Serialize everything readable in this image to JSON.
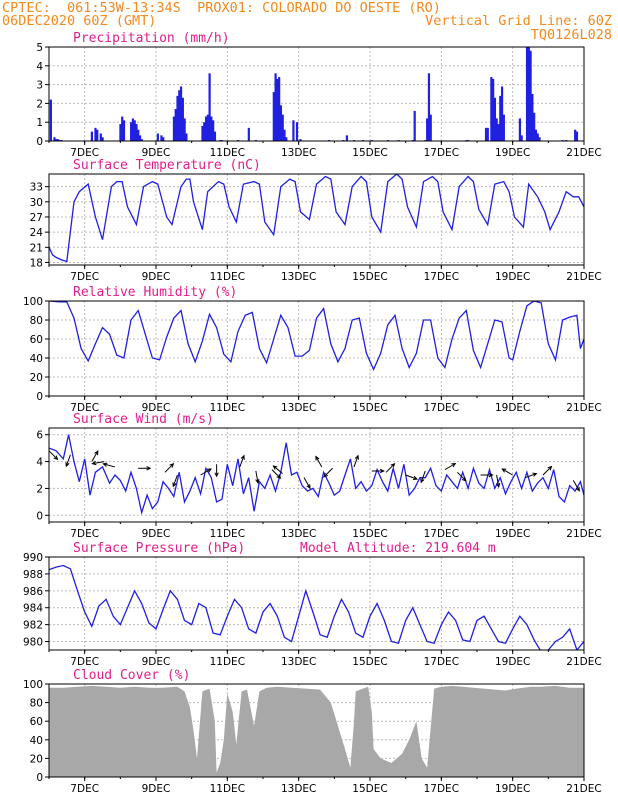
{
  "header": {
    "line1_left": "CPTEC:  061:53W-13:34S  PROX01: COLORADO DO OESTE (RO)",
    "line2_left": "06DEC2020 60Z (GMT)",
    "line2_right": "Vertical Grid Line: 60Z",
    "line3_right": "TQ0126L028"
  },
  "colors": {
    "header": "#f28a1e",
    "title": "#e0208a",
    "series": "#2020e0",
    "cloud": "#a8a8a8",
    "wind_arrow": "#000000",
    "grid": "#bcbcbc"
  },
  "x_axis": {
    "days": [
      {
        "day": 7,
        "label": "7DEC"
      },
      {
        "day": 9,
        "label": "9DEC"
      },
      {
        "day": 11,
        "label": "11DEC"
      },
      {
        "day": 13,
        "label": "13DEC"
      },
      {
        "day": 15,
        "label": "15DEC"
      },
      {
        "day": 17,
        "label": "17DEC"
      },
      {
        "day": 19,
        "label": "19DEC"
      },
      {
        "day": 21,
        "label": "21DEC"
      }
    ]
  },
  "chart_data": [
    {
      "id": "precip",
      "type": "bar",
      "title": "Precipitation (mm/h)",
      "ylim": [
        0,
        5
      ],
      "yticks": [
        0,
        1,
        2,
        3,
        4,
        5
      ],
      "x": [
        6.05,
        6.15,
        6.2,
        6.25,
        6.3,
        6.35,
        7.2,
        7.3,
        7.35,
        7.45,
        7.5,
        8.0,
        8.05,
        8.1,
        8.3,
        8.35,
        8.4,
        8.45,
        8.5,
        8.55,
        8.6,
        9.05,
        9.15,
        9.2,
        9.5,
        9.55,
        9.6,
        9.65,
        9.7,
        9.75,
        9.8,
        9.85,
        10.3,
        10.35,
        10.4,
        10.45,
        10.5,
        10.55,
        10.6,
        10.65,
        10.8,
        10.85,
        11.3,
        11.6,
        11.8,
        12.3,
        12.35,
        12.4,
        12.45,
        12.5,
        12.55,
        12.6,
        12.65,
        12.85,
        12.95,
        13.05,
        13.85,
        14.25,
        14.35,
        14.55,
        14.8,
        15.05,
        15.5,
        15.8,
        16.2,
        16.25,
        16.55,
        16.6,
        16.65,
        16.7,
        17.7,
        17.75,
        18.25,
        18.3,
        18.4,
        18.45,
        18.5,
        18.55,
        18.6,
        18.65,
        18.7,
        18.75,
        19.2,
        19.25,
        19.4,
        19.45,
        19.5,
        19.55,
        19.6,
        19.65,
        19.7,
        19.75,
        20.4,
        20.5,
        20.75,
        20.8
      ],
      "values": [
        2.2,
        0.2,
        0.1,
        0.1,
        0.05,
        0.05,
        0.5,
        0.7,
        0.6,
        0.4,
        0.2,
        0.9,
        1.3,
        1.1,
        1.0,
        1.2,
        1.1,
        0.9,
        0.6,
        0.3,
        0.1,
        0.4,
        0.3,
        0.2,
        1.3,
        1.7,
        2.4,
        2.7,
        2.9,
        2.3,
        1.2,
        0.4,
        0.8,
        1.0,
        1.3,
        1.4,
        3.6,
        1.3,
        1.1,
        0.5,
        0.05,
        0.05,
        0.05,
        0.7,
        0.05,
        2.6,
        3.6,
        3.3,
        3.4,
        1.9,
        1.4,
        0.6,
        0.2,
        1.1,
        1.0,
        0.1,
        0.05,
        0.05,
        0.3,
        0.05,
        0.05,
        0.05,
        0.05,
        0.05,
        0.05,
        1.6,
        0.05,
        1.2,
        3.6,
        1.4,
        0.05,
        0.05,
        0.7,
        0.7,
        3.4,
        3.3,
        2.3,
        1.2,
        0.9,
        2.4,
        2.9,
        1.4,
        1.2,
        0.3,
        5.0,
        5.0,
        4.8,
        2.5,
        1.5,
        0.6,
        0.4,
        0.2,
        0.05,
        0.05,
        0.6,
        0.5
      ]
    },
    {
      "id": "temp",
      "type": "line",
      "title": "Surface Temperature (nC)",
      "ylim": [
        17.5,
        35.5
      ],
      "yticks": [
        18,
        21,
        24,
        27,
        30,
        33
      ],
      "x": [
        6.0,
        6.1,
        6.2,
        6.35,
        6.5,
        6.7,
        6.85,
        7.1,
        7.3,
        7.5,
        7.75,
        7.9,
        8.05,
        8.2,
        8.45,
        8.65,
        8.9,
        9.05,
        9.3,
        9.45,
        9.7,
        9.85,
        9.95,
        10.05,
        10.3,
        10.45,
        10.75,
        10.9,
        11.05,
        11.25,
        11.45,
        11.75,
        11.9,
        12.05,
        12.3,
        12.5,
        12.75,
        12.9,
        13.05,
        13.3,
        13.5,
        13.75,
        13.9,
        14.05,
        14.3,
        14.5,
        14.75,
        14.9,
        15.05,
        15.3,
        15.5,
        15.75,
        15.9,
        16.05,
        16.3,
        16.5,
        16.75,
        16.9,
        17.05,
        17.3,
        17.5,
        17.75,
        17.9,
        18.05,
        18.3,
        18.5,
        18.75,
        18.9,
        19.05,
        19.3,
        19.45,
        19.7,
        19.9,
        20.05,
        20.3,
        20.5,
        20.7,
        20.85,
        21.0
      ],
      "values": [
        21.0,
        19.5,
        19.0,
        18.5,
        18.2,
        30.0,
        32.0,
        33.5,
        27.0,
        22.5,
        33.0,
        34.0,
        34.0,
        29.0,
        25.5,
        33.0,
        34.0,
        33.5,
        27.0,
        25.5,
        33.0,
        34.5,
        34.5,
        30.0,
        24.5,
        32.0,
        34.0,
        33.5,
        29.0,
        26.0,
        33.5,
        34.0,
        33.5,
        26.0,
        23.5,
        33.0,
        34.5,
        34.0,
        28.0,
        26.5,
        33.5,
        35.0,
        34.5,
        28.0,
        25.5,
        33.0,
        35.0,
        34.0,
        27.0,
        24.0,
        34.0,
        35.5,
        34.5,
        29.0,
        25.0,
        34.0,
        35.0,
        34.0,
        28.0,
        24.5,
        33.0,
        35.0,
        34.0,
        28.5,
        25.5,
        33.5,
        34.0,
        32.0,
        27.0,
        25.0,
        33.5,
        31.0,
        28.0,
        24.5,
        28.0,
        32.0,
        31.0,
        31.0,
        29.0
      ]
    },
    {
      "id": "rh",
      "type": "line",
      "title": "Relative Humidity (%)",
      "ylim": [
        0,
        100
      ],
      "yticks": [
        0,
        20,
        40,
        60,
        80,
        100
      ],
      "x": [
        6.0,
        6.3,
        6.5,
        6.7,
        6.9,
        7.1,
        7.3,
        7.5,
        7.7,
        7.9,
        8.1,
        8.3,
        8.5,
        8.7,
        8.9,
        9.1,
        9.3,
        9.5,
        9.7,
        9.9,
        10.1,
        10.3,
        10.5,
        10.7,
        10.9,
        11.1,
        11.3,
        11.5,
        11.7,
        11.9,
        12.1,
        12.3,
        12.5,
        12.7,
        12.9,
        13.1,
        13.3,
        13.5,
        13.7,
        13.9,
        14.1,
        14.3,
        14.5,
        14.7,
        14.9,
        15.1,
        15.3,
        15.5,
        15.7,
        15.9,
        16.1,
        16.3,
        16.5,
        16.7,
        16.9,
        17.1,
        17.3,
        17.5,
        17.7,
        17.9,
        18.1,
        18.3,
        18.5,
        18.7,
        18.9,
        19.0,
        19.2,
        19.4,
        19.6,
        19.8,
        20.0,
        20.2,
        20.4,
        20.6,
        20.8,
        20.9,
        21.0
      ],
      "values": [
        100,
        99,
        99,
        82,
        50,
        37,
        55,
        72,
        65,
        43,
        40,
        80,
        90,
        65,
        40,
        38,
        62,
        82,
        90,
        55,
        36,
        58,
        86,
        72,
        44,
        36,
        68,
        85,
        88,
        50,
        35,
        60,
        85,
        72,
        42,
        42,
        48,
        82,
        92,
        55,
        36,
        50,
        80,
        82,
        45,
        28,
        45,
        75,
        85,
        50,
        30,
        45,
        80,
        80,
        40,
        30,
        60,
        82,
        90,
        48,
        30,
        55,
        80,
        78,
        40,
        38,
        68,
        95,
        100,
        98,
        55,
        38,
        80,
        83,
        85,
        50,
        60
      ]
    },
    {
      "id": "wind",
      "type": "line",
      "title": "Surface Wind (m/s)",
      "ylim": [
        -0.5,
        6.5
      ],
      "yticks": [
        0,
        2,
        4,
        6
      ],
      "x": [
        6.0,
        6.2,
        6.4,
        6.55,
        6.7,
        6.85,
        7.0,
        7.15,
        7.3,
        7.5,
        7.7,
        7.85,
        8.0,
        8.15,
        8.3,
        8.45,
        8.6,
        8.75,
        8.9,
        9.05,
        9.2,
        9.35,
        9.5,
        9.65,
        9.8,
        9.95,
        10.1,
        10.25,
        10.4,
        10.55,
        10.7,
        10.85,
        11.0,
        11.15,
        11.3,
        11.45,
        11.6,
        11.75,
        11.9,
        12.05,
        12.2,
        12.35,
        12.5,
        12.65,
        12.8,
        12.95,
        13.1,
        13.25,
        13.4,
        13.55,
        13.7,
        13.85,
        14.0,
        14.15,
        14.3,
        14.45,
        14.6,
        14.75,
        14.9,
        15.05,
        15.2,
        15.35,
        15.5,
        15.65,
        15.8,
        15.95,
        16.1,
        16.25,
        16.4,
        16.55,
        16.7,
        16.85,
        17.0,
        17.15,
        17.3,
        17.45,
        17.6,
        17.75,
        17.9,
        18.05,
        18.2,
        18.35,
        18.5,
        18.65,
        18.8,
        18.95,
        19.1,
        19.25,
        19.4,
        19.55,
        19.7,
        19.85,
        20.0,
        20.15,
        20.3,
        20.45,
        20.6,
        20.75,
        20.9,
        21.0
      ],
      "values": [
        5.0,
        4.8,
        4.2,
        6.0,
        4.0,
        2.5,
        4.2,
        1.5,
        3.2,
        3.6,
        2.4,
        3.0,
        2.6,
        1.8,
        3.2,
        2.0,
        0.2,
        1.5,
        0.5,
        1.0,
        2.5,
        2.0,
        1.4,
        3.2,
        1.0,
        1.8,
        2.8,
        1.6,
        3.5,
        2.8,
        1.0,
        1.2,
        3.8,
        2.2,
        4.2,
        1.6,
        2.8,
        0.3,
        2.5,
        2.0,
        3.0,
        1.8,
        3.2,
        5.4,
        3.0,
        3.2,
        2.2,
        1.8,
        2.0,
        1.4,
        3.2,
        2.4,
        1.5,
        1.8,
        3.0,
        4.2,
        2.0,
        2.5,
        1.8,
        2.2,
        3.4,
        2.5,
        1.8,
        3.5,
        2.0,
        3.8,
        1.5,
        2.0,
        2.8,
        2.8,
        3.5,
        2.2,
        1.8,
        3.0,
        2.5,
        2.0,
        3.2,
        2.0,
        3.5,
        2.4,
        2.0,
        3.4,
        2.0,
        2.8,
        1.6,
        2.5,
        3.2,
        2.0,
        3.2,
        1.8,
        2.4,
        2.8,
        2.0,
        3.4,
        1.4,
        1.0,
        2.2,
        1.8,
        2.5,
        1.5
      ]
    },
    {
      "id": "pres",
      "type": "line",
      "title": "Surface Pressure (hPa)",
      "annotation": "Model Altitude: 219.604 m",
      "ylim": [
        979,
        990
      ],
      "yticks": [
        980,
        982,
        984,
        986,
        988,
        990
      ],
      "x": [
        6.0,
        6.2,
        6.4,
        6.6,
        6.8,
        7.0,
        7.2,
        7.4,
        7.6,
        7.8,
        8.0,
        8.2,
        8.4,
        8.6,
        8.8,
        9.0,
        9.2,
        9.4,
        9.6,
        9.8,
        10.0,
        10.2,
        10.4,
        10.6,
        10.8,
        11.0,
        11.2,
        11.4,
        11.6,
        11.8,
        12.0,
        12.2,
        12.4,
        12.6,
        12.8,
        13.0,
        13.2,
        13.4,
        13.6,
        13.8,
        14.0,
        14.2,
        14.4,
        14.6,
        14.8,
        15.0,
        15.2,
        15.4,
        15.6,
        15.8,
        16.0,
        16.2,
        16.4,
        16.6,
        16.8,
        17.0,
        17.2,
        17.4,
        17.6,
        17.8,
        18.0,
        18.2,
        18.4,
        18.6,
        18.8,
        19.0,
        19.2,
        19.4,
        19.6,
        19.8,
        20.0,
        20.2,
        20.4,
        20.6,
        20.8,
        21.0
      ],
      "values": [
        988.5,
        988.8,
        989.0,
        988.6,
        986.0,
        983.5,
        981.8,
        984.2,
        985.0,
        983.0,
        982.0,
        984.0,
        986.0,
        984.5,
        982.2,
        981.5,
        983.8,
        986.0,
        985.0,
        982.5,
        982.0,
        984.5,
        984.0,
        981.0,
        980.8,
        983.0,
        985.0,
        984.0,
        981.5,
        981.0,
        983.5,
        984.5,
        983.0,
        980.5,
        980.0,
        983.0,
        986.0,
        983.5,
        980.8,
        980.5,
        983.0,
        985.0,
        983.5,
        981.0,
        980.5,
        983.0,
        984.5,
        982.5,
        980.0,
        979.8,
        982.5,
        984.0,
        982.0,
        980.0,
        979.8,
        982.0,
        983.5,
        982.5,
        980.2,
        980.0,
        982.5,
        983.0,
        981.5,
        980.0,
        979.8,
        981.5,
        983.0,
        982.0,
        980.2,
        978.8,
        979.0,
        980.0,
        980.5,
        981.5,
        979.0,
        980.0
      ]
    },
    {
      "id": "cloud",
      "type": "area",
      "title": "Cloud Cover (%)",
      "ylim": [
        0,
        100
      ],
      "yticks": [
        0,
        20,
        40,
        60,
        80,
        100
      ],
      "x": [
        6.0,
        6.4,
        6.8,
        7.2,
        7.6,
        8.0,
        8.4,
        8.8,
        9.2,
        9.6,
        9.8,
        9.95,
        10.05,
        10.15,
        10.3,
        10.5,
        10.65,
        10.7,
        10.8,
        10.9,
        11.0,
        11.15,
        11.25,
        11.4,
        11.55,
        11.75,
        11.9,
        12.1,
        12.4,
        12.8,
        13.2,
        13.6,
        13.9,
        14.1,
        14.3,
        14.45,
        14.55,
        14.6,
        14.8,
        14.95,
        15.05,
        15.1,
        15.3,
        15.6,
        15.9,
        16.1,
        16.3,
        16.45,
        16.6,
        16.8,
        17.0,
        17.3,
        17.6,
        17.9,
        18.2,
        18.5,
        18.8,
        19.1,
        19.3,
        19.5,
        19.8,
        20.2,
        20.6,
        21.0
      ],
      "values": [
        96,
        96,
        97,
        98,
        97,
        96,
        97,
        96,
        96,
        97,
        92,
        75,
        50,
        20,
        92,
        95,
        60,
        5,
        15,
        40,
        90,
        70,
        35,
        92,
        94,
        55,
        92,
        96,
        97,
        96,
        95,
        94,
        80,
        55,
        30,
        10,
        60,
        92,
        95,
        97,
        70,
        30,
        20,
        15,
        25,
        40,
        60,
        20,
        10,
        95,
        97,
        98,
        97,
        96,
        95,
        94,
        93,
        95,
        96,
        97,
        97,
        98,
        96,
        96
      ]
    }
  ],
  "wind_arrows": [
    {
      "day": 6.0,
      "speed": 4.8,
      "dir": 135
    },
    {
      "day": 6.6,
      "speed": 4.5,
      "dir": 200
    },
    {
      "day": 7.2,
      "speed": 4.0,
      "dir": 30
    },
    {
      "day": 7.55,
      "speed": 4.0,
      "dir": 260
    },
    {
      "day": 7.85,
      "speed": 3.6,
      "dir": 285
    },
    {
      "day": 8.5,
      "speed": 3.5,
      "dir": 90
    },
    {
      "day": 9.25,
      "speed": 3.2,
      "dir": 45
    },
    {
      "day": 9.6,
      "speed": 3.0,
      "dir": 200
    },
    {
      "day": 10.25,
      "speed": 3.0,
      "dir": 60
    },
    {
      "day": 10.7,
      "speed": 3.8,
      "dir": 180
    },
    {
      "day": 11.35,
      "speed": 3.6,
      "dir": 20
    },
    {
      "day": 11.8,
      "speed": 3.3,
      "dir": 170
    },
    {
      "day": 12.25,
      "speed": 3.4,
      "dir": 135
    },
    {
      "day": 12.55,
      "speed": 3.1,
      "dir": 310
    },
    {
      "day": 13.15,
      "speed": 2.8,
      "dir": 150
    },
    {
      "day": 13.65,
      "speed": 3.6,
      "dir": 330
    },
    {
      "day": 13.95,
      "speed": 3.5,
      "dir": 225
    },
    {
      "day": 14.55,
      "speed": 3.6,
      "dir": 20
    },
    {
      "day": 15.05,
      "speed": 3.3,
      "dir": 90
    },
    {
      "day": 15.45,
      "speed": 3.2,
      "dir": 45
    },
    {
      "day": 16.0,
      "speed": 3.0,
      "dir": 110
    },
    {
      "day": 16.55,
      "speed": 3.3,
      "dir": 200
    },
    {
      "day": 17.1,
      "speed": 3.4,
      "dir": 60
    },
    {
      "day": 17.45,
      "speed": 3.2,
      "dir": 135
    },
    {
      "day": 18.1,
      "speed": 3.0,
      "dir": 90
    },
    {
      "day": 18.55,
      "speed": 3.0,
      "dir": 170
    },
    {
      "day": 19.0,
      "speed": 3.0,
      "dir": 300
    },
    {
      "day": 19.35,
      "speed": 2.8,
      "dir": 70
    },
    {
      "day": 19.85,
      "speed": 3.0,
      "dir": 45
    },
    {
      "day": 20.7,
      "speed": 2.6,
      "dir": 150
    }
  ]
}
